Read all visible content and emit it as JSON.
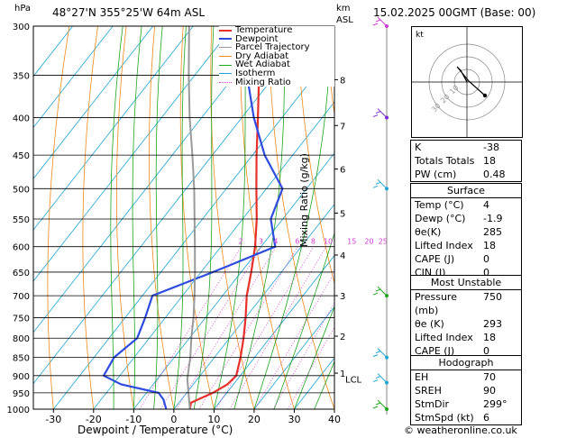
{
  "header": {
    "station": "48°27'N  355°25'W  64m  ASL",
    "datetime": "15.02.2025  00GMT  (Base: 00)",
    "p_unit": "hPa",
    "km_label": "km",
    "asl_label": "ASL"
  },
  "chart_data": {
    "type": "line",
    "title": "Skew-T log-P diagram",
    "xlabel": "Dewpoint / Temperature (°C)",
    "ylabel": "hPa",
    "right_label": "Mixing Ratio (g/kg)",
    "xlim": [
      -35,
      40
    ],
    "x_ticks": [
      -30,
      -20,
      -10,
      0,
      10,
      20,
      30,
      40
    ],
    "p_ticks": [
      300,
      350,
      400,
      450,
      500,
      550,
      600,
      650,
      700,
      750,
      800,
      850,
      900,
      950,
      1000
    ],
    "km_ticks": [
      {
        "km": "1",
        "p": 893
      },
      {
        "km": "2",
        "p": 795
      },
      {
        "km": "3",
        "p": 700
      },
      {
        "km": "4",
        "p": 616
      },
      {
        "km": "5",
        "p": 540
      },
      {
        "km": "6",
        "p": 470
      },
      {
        "km": "7",
        "p": 410
      },
      {
        "km": "8",
        "p": 355
      }
    ],
    "lcl": {
      "label": "LCL",
      "p": 910
    },
    "mixing_ratio_labels": [
      "2",
      "3",
      "4",
      "6",
      "8",
      "10",
      "15",
      "20",
      "25"
    ],
    "mixing_ratio_values": [
      2,
      3,
      4,
      6,
      8,
      10,
      15,
      20,
      25
    ],
    "legend": [
      {
        "label": "Temperature",
        "color": "#e8302a"
      },
      {
        "label": "Dewpoint",
        "color": "#2f4ce0"
      },
      {
        "label": "Parcel Trajectory",
        "color": "#9a9a9a"
      },
      {
        "label": "Dry Adiabat",
        "color": "#f08a1a"
      },
      {
        "label": "Wet Adiabat",
        "color": "#1ea51e"
      },
      {
        "label": "Isotherm",
        "color": "#1fa6d4"
      },
      {
        "label": "Mixing Ratio",
        "color": "#d43ad4"
      }
    ],
    "series": [
      {
        "name": "Temperature",
        "color": "#e8302a",
        "points": [
          [
            1000,
            4.0
          ],
          [
            980,
            3.0
          ],
          [
            950,
            6.5
          ],
          [
            925,
            8.5
          ],
          [
            900,
            9.0
          ],
          [
            850,
            6.5
          ],
          [
            800,
            3.5
          ],
          [
            750,
            0.0
          ],
          [
            700,
            -4.0
          ],
          [
            650,
            -7.5
          ],
          [
            600,
            -11.5
          ],
          [
            550,
            -16.5
          ],
          [
            500,
            -22.5
          ],
          [
            450,
            -29.0
          ],
          [
            400,
            -36.0
          ],
          [
            350,
            -44.0
          ],
          [
            300,
            -53.0
          ]
        ]
      },
      {
        "name": "Dewpoint",
        "color": "#2f4ce0",
        "points": [
          [
            1000,
            -1.9
          ],
          [
            970,
            -4.5
          ],
          [
            950,
            -7.0
          ],
          [
            925,
            -18.0
          ],
          [
            900,
            -24.0
          ],
          [
            850,
            -25.0
          ],
          [
            800,
            -23.0
          ],
          [
            750,
            -25.0
          ],
          [
            700,
            -27.5
          ],
          [
            650,
            -17.0
          ],
          [
            600,
            -6.5
          ],
          [
            550,
            -13.0
          ],
          [
            500,
            -16.0
          ],
          [
            450,
            -27.0
          ],
          [
            400,
            -37.0
          ],
          [
            350,
            -47.0
          ],
          [
            300,
            -62.0
          ]
        ]
      },
      {
        "name": "Parcel Trajectory",
        "color": "#9a9a9a",
        "points": [
          [
            1000,
            4.0
          ],
          [
            910,
            -2.5
          ],
          [
            850,
            -6.0
          ],
          [
            800,
            -9.5
          ],
          [
            750,
            -13.0
          ],
          [
            700,
            -17.0
          ],
          [
            650,
            -21.5
          ],
          [
            600,
            -26.5
          ],
          [
            550,
            -32.0
          ],
          [
            500,
            -38.0
          ],
          [
            450,
            -45.0
          ],
          [
            400,
            -53.0
          ],
          [
            350,
            -61.5
          ],
          [
            300,
            -71.0
          ]
        ]
      }
    ]
  },
  "hodograph": {
    "unit_label": "kt",
    "ring_labels": [
      "10",
      "20",
      "30"
    ]
  },
  "indices": [
    {
      "label": "K",
      "value": "-38"
    },
    {
      "label": "Totals Totals",
      "value": "18"
    },
    {
      "label": "PW (cm)",
      "value": "0.48"
    }
  ],
  "surface": {
    "title": "Surface",
    "rows": [
      {
        "label": "Temp (°C)",
        "value": "4"
      },
      {
        "label": "Dewp (°C)",
        "value": "-1.9"
      },
      {
        "label": "θe(K)",
        "value": "285"
      },
      {
        "label": "Lifted Index",
        "value": "18"
      },
      {
        "label": "CAPE (J)",
        "value": "0"
      },
      {
        "label": "CIN (J)",
        "value": "0"
      }
    ]
  },
  "most_unstable": {
    "title": "Most Unstable",
    "rows": [
      {
        "label": "Pressure (mb)",
        "value": "750"
      },
      {
        "label": "θe (K)",
        "value": "293"
      },
      {
        "label": "Lifted Index",
        "value": "18"
      },
      {
        "label": "CAPE (J)",
        "value": "0"
      },
      {
        "label": "CIN (J)",
        "value": "0"
      }
    ]
  },
  "hodograph_table": {
    "title": "Hodograph",
    "rows": [
      {
        "label": "EH",
        "value": "70"
      },
      {
        "label": "SREH",
        "value": "90"
      },
      {
        "label": "StmDir",
        "value": "299°"
      },
      {
        "label": "StmSpd (kt)",
        "value": "6"
      }
    ]
  },
  "footer": "© weatheronline.co.uk"
}
